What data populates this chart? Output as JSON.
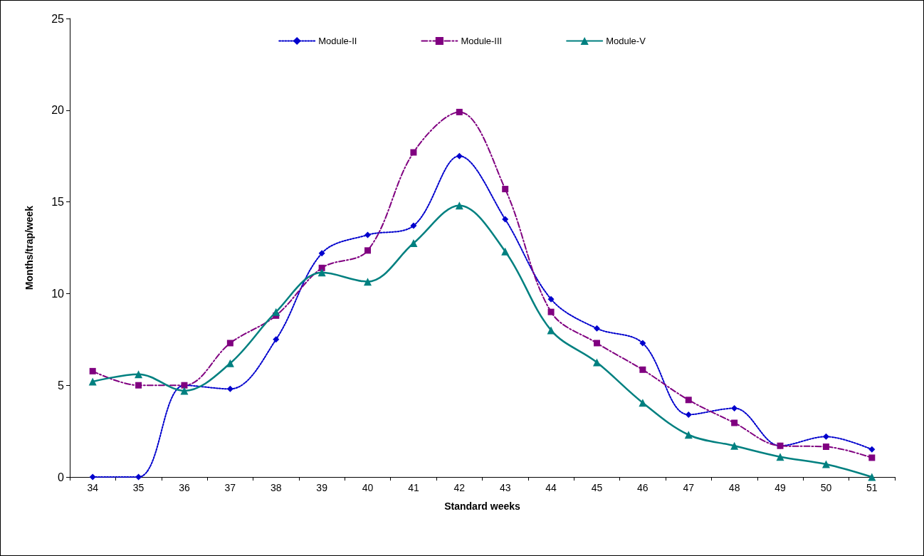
{
  "chart_data": {
    "type": "line",
    "xlabel": "Standard weeks",
    "ylabel": "Months/trap/week",
    "categories": [
      "34",
      "35",
      "36",
      "37",
      "38",
      "39",
      "40",
      "41",
      "42",
      "43",
      "44",
      "45",
      "46",
      "47",
      "48",
      "49",
      "50",
      "51"
    ],
    "series": [
      {
        "name": "Module-II",
        "color": "#0000cd",
        "marker": "diamond",
        "line_style": "dotted",
        "values": [
          0,
          0,
          5.0,
          4.8,
          7.5,
          12.2,
          13.2,
          13.7,
          17.5,
          14.05,
          9.7,
          8.1,
          7.3,
          3.4,
          3.75,
          1.7,
          2.2,
          1.5
        ]
      },
      {
        "name": "Module-III",
        "color": "#800080",
        "marker": "square",
        "line_style": "dashed",
        "values": [
          5.77,
          5.0,
          5.0,
          7.3,
          8.8,
          11.4,
          12.35,
          17.7,
          19.9,
          15.7,
          9.0,
          7.3,
          5.85,
          4.2,
          2.95,
          1.7,
          1.65,
          1.05
        ]
      },
      {
        "name": "Module-V",
        "color": "#008080",
        "marker": "triangle",
        "line_style": "solid",
        "values": [
          5.2,
          5.6,
          4.7,
          6.2,
          9.0,
          11.15,
          10.65,
          12.75,
          14.8,
          12.3,
          8.0,
          6.25,
          4.05,
          2.3,
          1.7,
          1.1,
          0.7,
          0
        ]
      }
    ],
    "ylim": [
      0,
      25
    ],
    "yticks": [
      0,
      5,
      10,
      15,
      20,
      25
    ],
    "grid": false,
    "legend": "top"
  }
}
